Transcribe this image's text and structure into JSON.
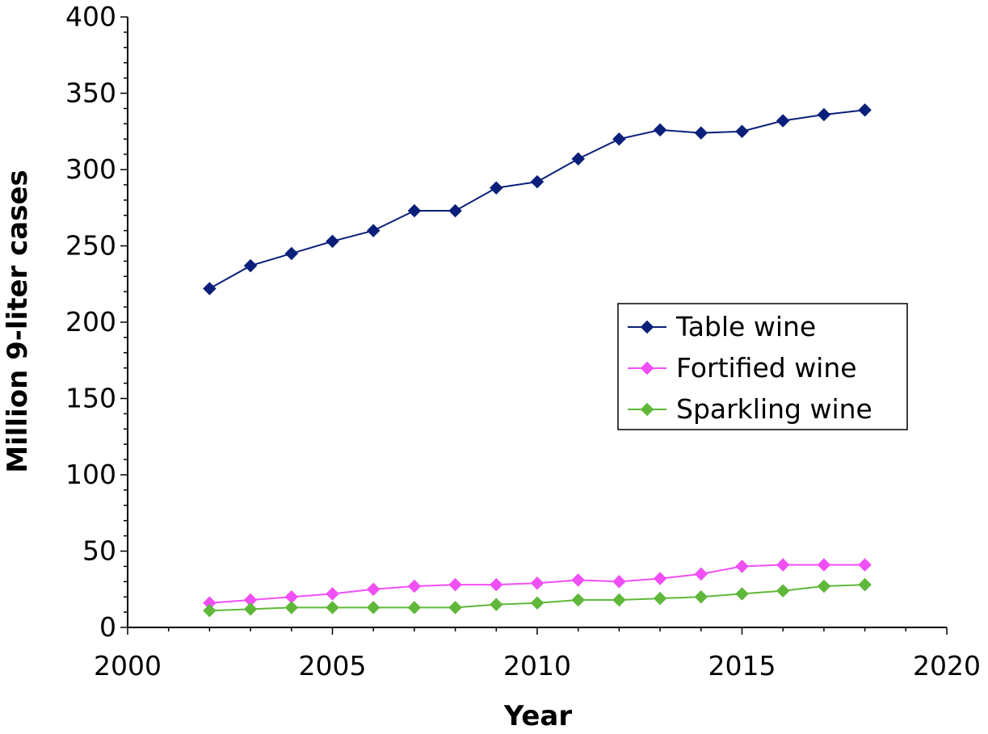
{
  "chart_data": {
    "type": "line",
    "title": "",
    "xlabel": "Year",
    "ylabel": "Million 9-liter cases",
    "xlim": [
      2000,
      2020
    ],
    "ylim": [
      0,
      400
    ],
    "x_ticks": [
      2000,
      2005,
      2010,
      2015,
      2020
    ],
    "y_ticks": [
      0,
      50,
      100,
      150,
      200,
      250,
      300,
      350,
      400
    ],
    "grid": false,
    "legend_position": "right",
    "x": [
      2002,
      2003,
      2004,
      2005,
      2006,
      2007,
      2008,
      2009,
      2010,
      2011,
      2012,
      2013,
      2014,
      2015,
      2016,
      2017,
      2018
    ],
    "series": [
      {
        "name": "Table wine",
        "color": "#0a1f7a",
        "marker": "diamond",
        "values": [
          222,
          237,
          245,
          253,
          260,
          273,
          273,
          288,
          292,
          307,
          320,
          326,
          324,
          325,
          332,
          336,
          339
        ]
      },
      {
        "name": "Fortified wine",
        "color": "#f04ff5",
        "marker": "diamond",
        "values": [
          16,
          18,
          20,
          22,
          25,
          27,
          28,
          28,
          29,
          31,
          30,
          32,
          35,
          40,
          41,
          41,
          41
        ]
      },
      {
        "name": "Sparkling wine",
        "color": "#5fb83a",
        "marker": "diamond",
        "values": [
          11,
          12,
          13,
          13,
          13,
          13,
          13,
          15,
          16,
          18,
          18,
          19,
          20,
          22,
          24,
          27,
          28
        ]
      }
    ]
  }
}
